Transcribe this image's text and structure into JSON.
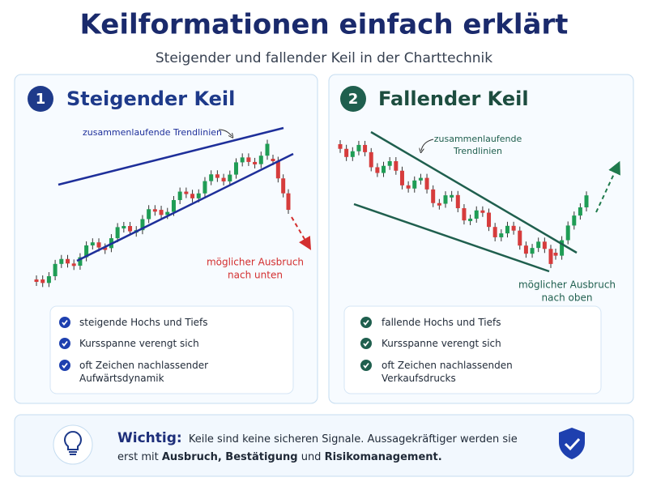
{
  "header": {
    "title": "Keilformationen einfach erklärt",
    "subtitle": "Steigender und fallender Keil in der Charttechnik"
  },
  "panels": [
    {
      "number": "1",
      "title": "Steigender Keil",
      "trend_note": [
        "zusammenlaufende Trendlinien"
      ],
      "breakout_note": [
        "möglicher Ausbruch",
        "nach unten"
      ],
      "bullets": [
        "steigende Hochs und Tiefs",
        "Kursspanne verengt sich",
        "oft Zeichen nachlassender Aufwärtsdynamik"
      ]
    },
    {
      "number": "2",
      "title": "Fallender Keil",
      "trend_note": [
        "zusammenlaufende",
        "Trendlinien"
      ],
      "breakout_note": [
        "möglicher Ausbruch",
        "nach oben"
      ],
      "bullets": [
        "fallende Hochs und Tiefs",
        "Kursspanne verengt sich",
        "oft Zeichen nachlassenden Verkaufsdrucks"
      ]
    }
  ],
  "note": {
    "label": "Wichtig:",
    "segments": [
      "Keile sind keine sicheren Signale. Aussagekräftiger werden sie erst mit",
      "Ausbruch, Bestätigung",
      "und",
      "Risikomanagement."
    ]
  }
}
